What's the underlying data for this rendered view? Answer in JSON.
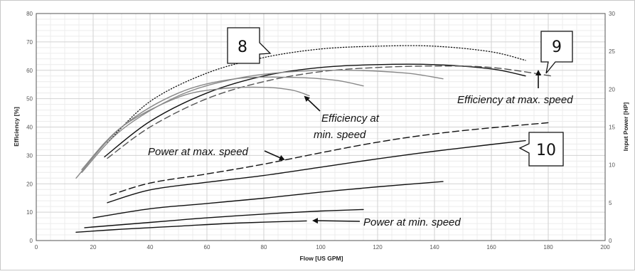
{
  "chart_data": {
    "type": "line",
    "xlabel": "Flow [US GPM]",
    "ylabel_left": "Efficiency [%]",
    "ylabel_right": "Input Power [HP]",
    "xlim": [
      0,
      200
    ],
    "ylim_left": [
      0,
      80
    ],
    "ylim_right": [
      0,
      30
    ],
    "x_ticks": [
      0,
      20,
      40,
      60,
      80,
      100,
      120,
      140,
      160,
      180,
      200
    ],
    "y_left_ticks": [
      0,
      10,
      20,
      30,
      40,
      50,
      60,
      70,
      80
    ],
    "y_right_ticks": [
      0,
      5,
      10,
      15,
      20,
      25,
      30
    ],
    "grid": true,
    "series": [
      {
        "axis": "left",
        "style": "dotted",
        "color": "#111111",
        "x": [
          25,
          40,
          60,
          80,
          100,
          120,
          140,
          160,
          172
        ],
        "y": [
          34.5,
          49,
          59,
          64.5,
          67.5,
          68.5,
          68.5,
          66.5,
          63.5
        ]
      },
      {
        "axis": "left",
        "style": "solid",
        "color": "#111111",
        "x": [
          24,
          40,
          60,
          80,
          100,
          120,
          140,
          160,
          172
        ],
        "y": [
          29.5,
          42,
          52,
          58,
          61,
          62,
          62,
          60.5,
          58
        ]
      },
      {
        "axis": "left",
        "style": "dashed",
        "color": "#555555",
        "x": [
          25,
          40,
          60,
          80,
          100,
          120,
          140,
          160,
          181
        ],
        "y": [
          29,
          40,
          50,
          56,
          59.5,
          61,
          61.5,
          61,
          58
        ]
      },
      {
        "axis": "left",
        "style": "solid",
        "color": "#888888",
        "x": [
          16,
          30,
          50,
          70,
          90,
          110,
          130,
          143
        ],
        "y": [
          24,
          39,
          51,
          57,
          59.5,
          60,
          59,
          57
        ]
      },
      {
        "axis": "left",
        "style": "solid",
        "color": "#888888",
        "x": [
          14,
          30,
          50,
          70,
          90,
          105,
          115
        ],
        "y": [
          22,
          40,
          52,
          57,
          57.5,
          56.5,
          54.5
        ]
      },
      {
        "axis": "left",
        "style": "solid",
        "color": "#888888",
        "x": [
          16,
          30,
          50,
          65,
          80,
          90,
          96
        ],
        "y": [
          25,
          40,
          50.5,
          53.5,
          54,
          53,
          51
        ]
      },
      {
        "axis": "right",
        "style": "dashed",
        "color": "#111111",
        "x": [
          26,
          40,
          60,
          80,
          100,
          120,
          140,
          160,
          181
        ],
        "y": [
          6,
          7.6,
          8.8,
          10.1,
          11.6,
          13,
          14.1,
          14.9,
          15.6
        ]
      },
      {
        "axis": "right",
        "style": "solid",
        "color": "#111111",
        "x": [
          25,
          40,
          60,
          80,
          100,
          120,
          140,
          160,
          172
        ],
        "y": [
          5,
          6.7,
          7.7,
          8.6,
          9.7,
          10.8,
          11.8,
          12.7,
          13.2
        ]
      },
      {
        "axis": "right",
        "style": "solid",
        "color": "#111111",
        "x": [
          20,
          40,
          60,
          80,
          100,
          120,
          143
        ],
        "y": [
          3,
          4.2,
          4.9,
          5.6,
          6.4,
          7.1,
          7.8
        ]
      },
      {
        "axis": "right",
        "style": "solid",
        "color": "#111111",
        "x": [
          17,
          40,
          60,
          80,
          100,
          115
        ],
        "y": [
          1.7,
          2.4,
          3,
          3.5,
          3.9,
          4.1
        ]
      },
      {
        "axis": "right",
        "style": "solid",
        "color": "#111111",
        "x": [
          14,
          30,
          50,
          70,
          95
        ],
        "y": [
          1.1,
          1.5,
          1.9,
          2.3,
          2.6
        ]
      }
    ],
    "annotations": [
      "Efficiency at max. speed",
      "Efficiency at\nmin. speed",
      "Power at max. speed",
      "Power at min. speed"
    ],
    "callouts": [
      "8",
      "9",
      "10"
    ]
  }
}
